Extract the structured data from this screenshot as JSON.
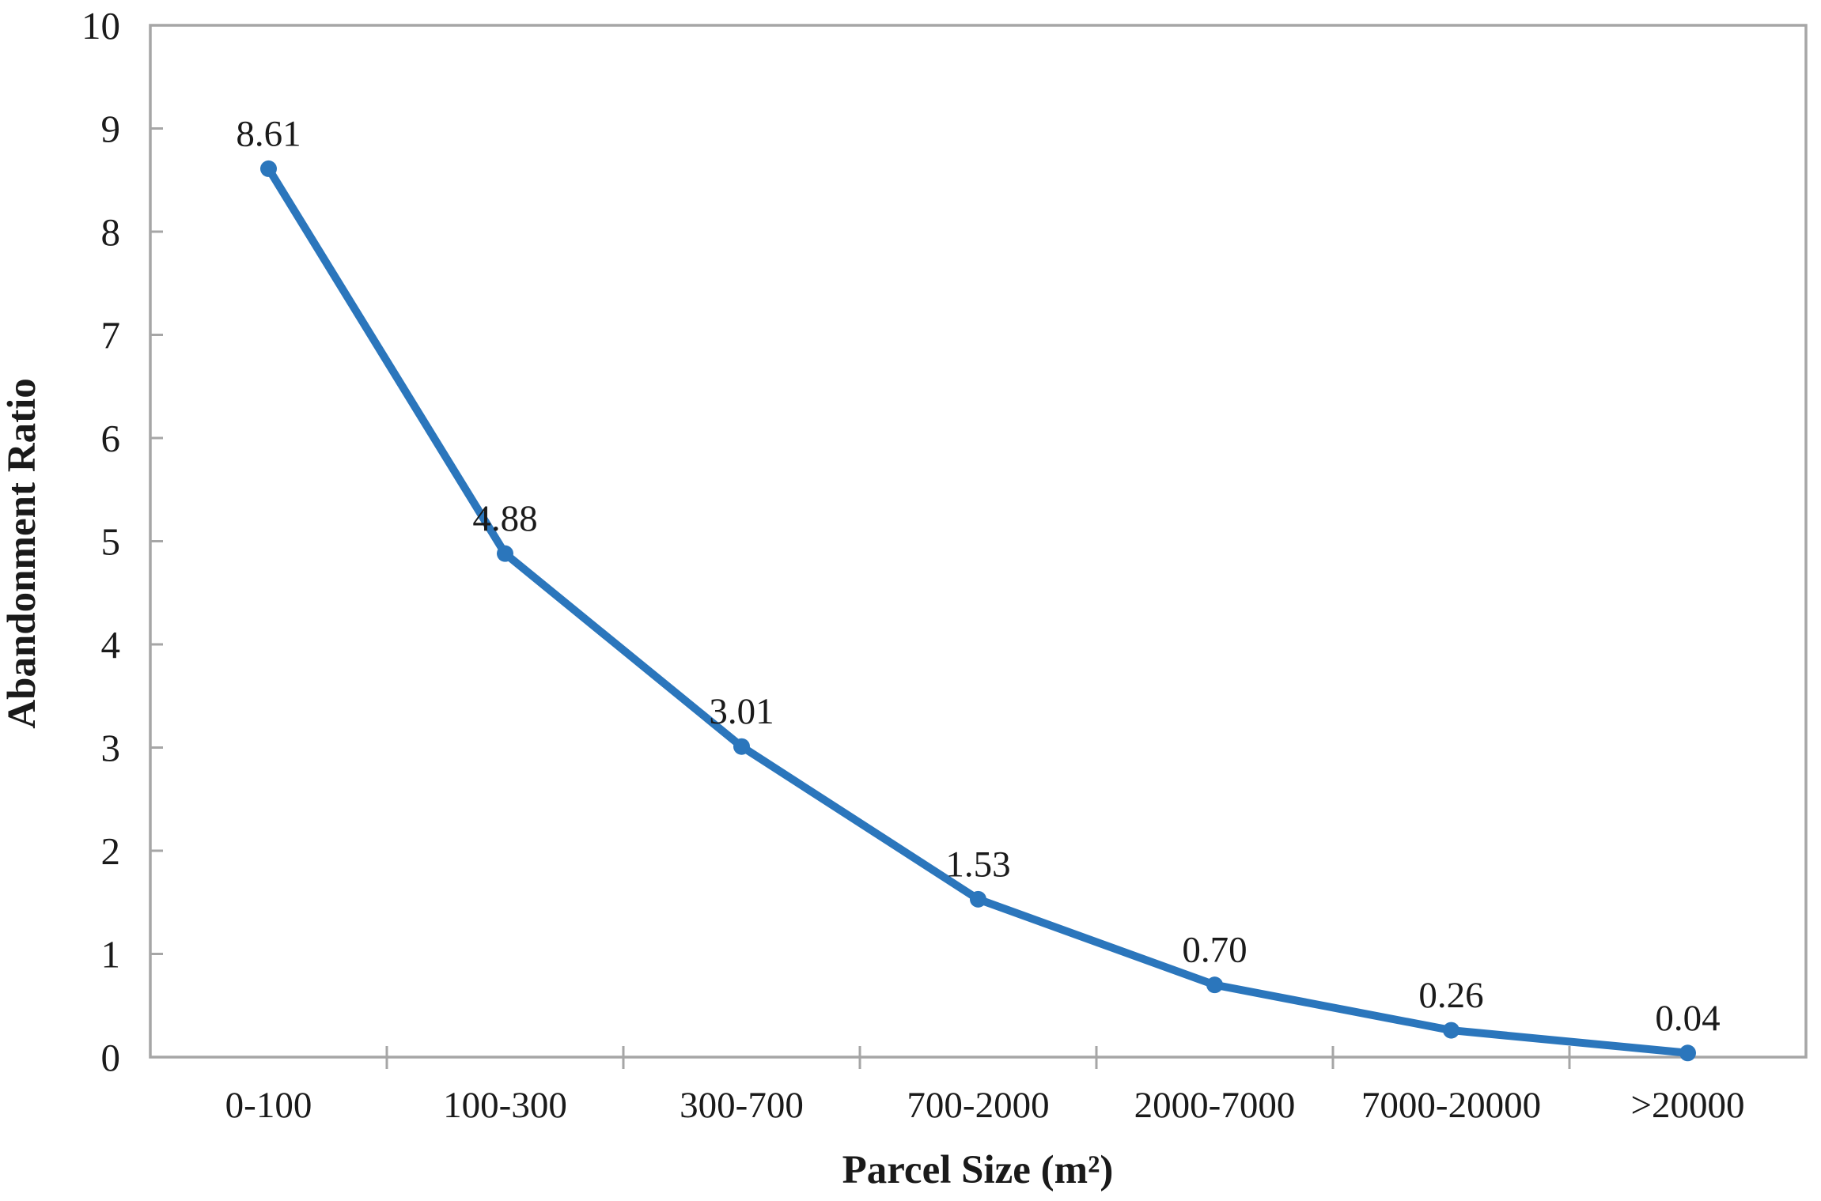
{
  "chart_data": {
    "type": "line",
    "title": "",
    "categories": [
      "0-100",
      "100-300",
      "300-700",
      "700-2000",
      "2000-7000",
      "7000-20000",
      ">20000"
    ],
    "values": [
      8.61,
      4.88,
      3.01,
      1.53,
      0.7,
      0.26,
      0.04
    ],
    "data_labels": [
      "8.61",
      "4.88",
      "3.01",
      "1.53",
      "0.70",
      "0.26",
      "0.04"
    ],
    "xlabel": "Parcel Size (m²)",
    "ylabel": "Abandonment Ratio",
    "ylim": [
      0,
      10
    ],
    "y_tick_step": 1,
    "y_tick_labels": [
      "0",
      "1",
      "2",
      "3",
      "4",
      "5",
      "6",
      "7",
      "8",
      "9",
      "10"
    ],
    "grid": false,
    "legend_position": "none",
    "marker": "circle",
    "colors": {
      "series": "#2B76BC",
      "axis": "#A6A6A6",
      "text": "#1A1A1A"
    }
  }
}
